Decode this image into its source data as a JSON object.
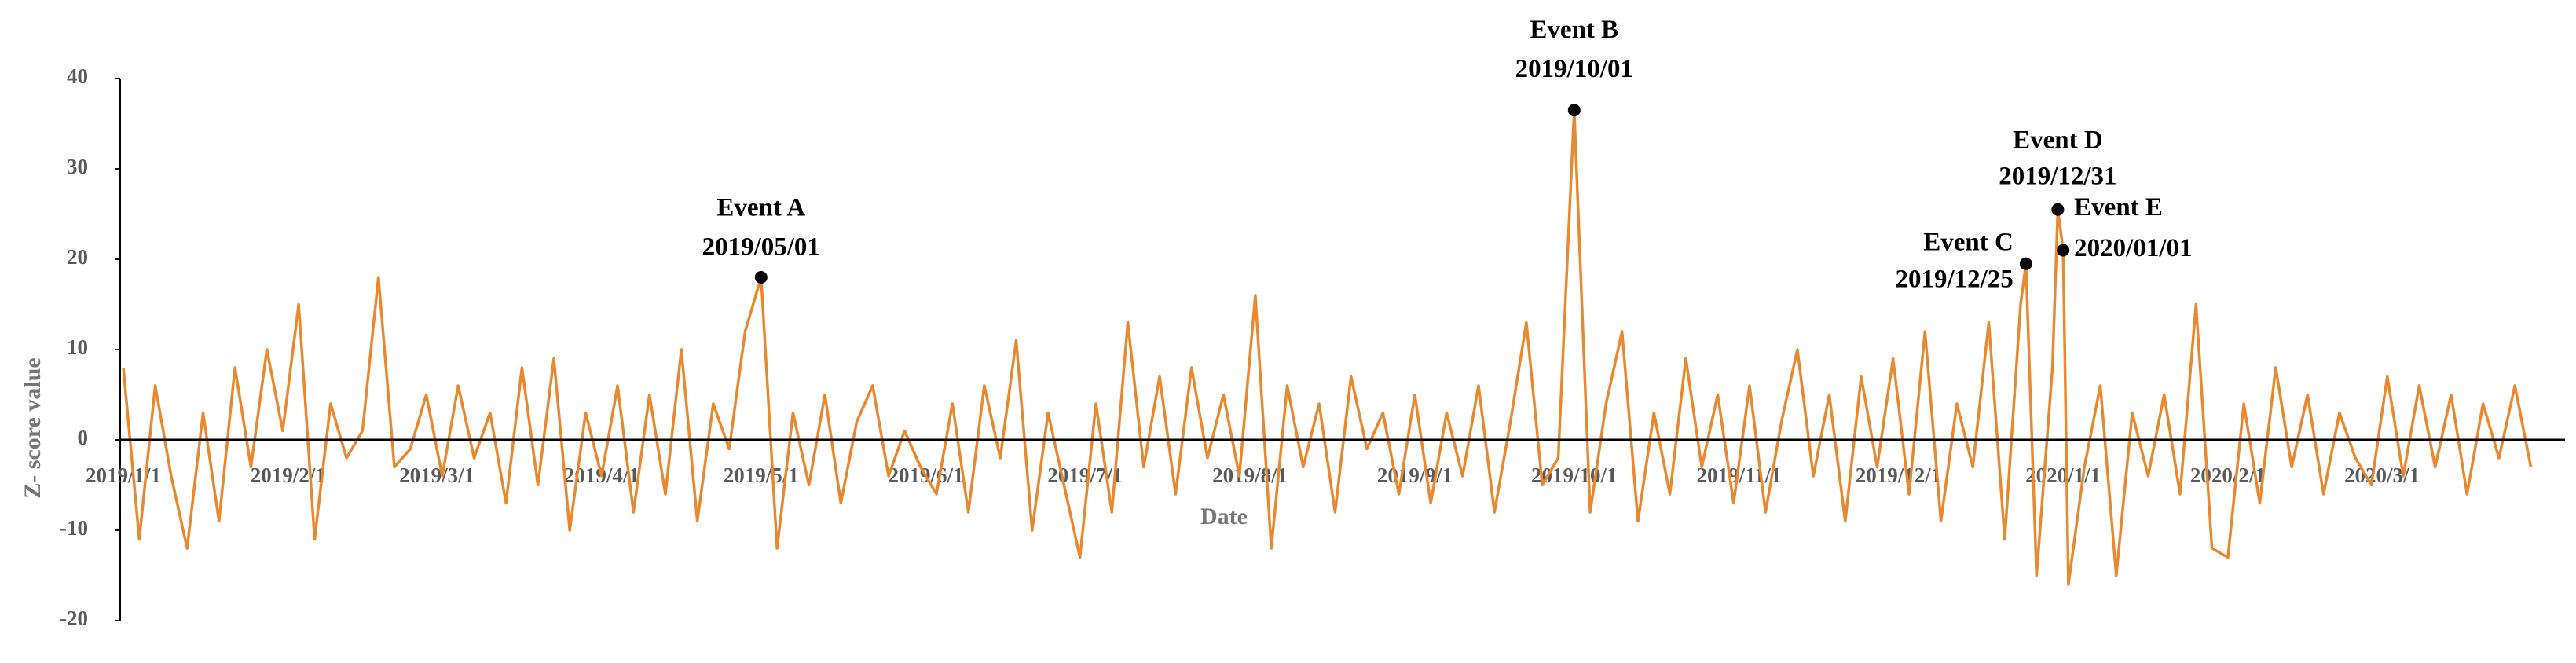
{
  "chart_data": {
    "type": "line",
    "y_label": "Z- score value",
    "x_label": "Date",
    "ylim": [
      -20,
      40
    ],
    "yticks": [
      -20,
      -10,
      0,
      10,
      20,
      30,
      40
    ],
    "xlim": [
      "2019/1/1",
      "2020/3/31"
    ],
    "xticks": [
      "2019/1/1",
      "2019/2/1",
      "2019/3/1",
      "2019/4/1",
      "2019/5/1",
      "2019/6/1",
      "2019/7/1",
      "2019/8/1",
      "2019/9/1",
      "2019/10/1",
      "2019/11/1",
      "2019/12/1",
      "2020/1/1",
      "2020/2/1",
      "2020/3/1"
    ],
    "series": [
      {
        "color": "#e8882f",
        "x": [
          "2019/1/1",
          "2019/1/4",
          "2019/1/7",
          "2019/1/10",
          "2019/1/13",
          "2019/1/16",
          "2019/1/19",
          "2019/1/22",
          "2019/1/25",
          "2019/1/28",
          "2019/1/31",
          "2019/2/3",
          "2019/2/6",
          "2019/2/9",
          "2019/2/12",
          "2019/2/15",
          "2019/2/18",
          "2019/2/21",
          "2019/2/24",
          "2019/2/27",
          "2019/3/2",
          "2019/3/5",
          "2019/3/8",
          "2019/3/11",
          "2019/3/14",
          "2019/3/17",
          "2019/3/20",
          "2019/3/23",
          "2019/3/26",
          "2019/3/29",
          "2019/4/1",
          "2019/4/4",
          "2019/4/7",
          "2019/4/10",
          "2019/4/13",
          "2019/4/16",
          "2019/4/19",
          "2019/4/22",
          "2019/4/25",
          "2019/4/28",
          "2019/5/1",
          "2019/5/4",
          "2019/5/7",
          "2019/5/10",
          "2019/5/13",
          "2019/5/16",
          "2019/5/19",
          "2019/5/22",
          "2019/5/25",
          "2019/5/28",
          "2019/5/31",
          "2019/6/3",
          "2019/6/6",
          "2019/6/9",
          "2019/6/12",
          "2019/6/15",
          "2019/6/18",
          "2019/6/21",
          "2019/6/24",
          "2019/6/27",
          "2019/6/30",
          "2019/7/3",
          "2019/7/6",
          "2019/7/9",
          "2019/7/12",
          "2019/7/15",
          "2019/7/18",
          "2019/7/21",
          "2019/7/24",
          "2019/7/27",
          "2019/7/30",
          "2019/8/2",
          "2019/8/5",
          "2019/8/8",
          "2019/8/11",
          "2019/8/14",
          "2019/8/17",
          "2019/8/20",
          "2019/8/23",
          "2019/8/26",
          "2019/8/29",
          "2019/9/1",
          "2019/9/4",
          "2019/9/7",
          "2019/9/10",
          "2019/9/13",
          "2019/9/16",
          "2019/9/19",
          "2019/9/22",
          "2019/9/25",
          "2019/9/28",
          "2019/10/1",
          "2019/10/4",
          "2019/10/7",
          "2019/10/10",
          "2019/10/13",
          "2019/10/16",
          "2019/10/19",
          "2019/10/22",
          "2019/10/25",
          "2019/10/28",
          "2019/10/31",
          "2019/11/3",
          "2019/11/6",
          "2019/11/9",
          "2019/11/12",
          "2019/11/15",
          "2019/11/18",
          "2019/11/21",
          "2019/11/24",
          "2019/11/27",
          "2019/11/30",
          "2019/12/3",
          "2019/12/6",
          "2019/12/9",
          "2019/12/12",
          "2019/12/15",
          "2019/12/18",
          "2019/12/21",
          "2019/12/24",
          "2019/12/25",
          "2019/12/27",
          "2019/12/30",
          "2019/12/31",
          "2020/1/1",
          "2020/1/2",
          "2020/1/5",
          "2020/1/8",
          "2020/1/11",
          "2020/1/14",
          "2020/1/17",
          "2020/1/20",
          "2020/1/23",
          "2020/1/26",
          "2020/1/29",
          "2020/2/1",
          "2020/2/4",
          "2020/2/7",
          "2020/2/10",
          "2020/2/13",
          "2020/2/16",
          "2020/2/19",
          "2020/2/22",
          "2020/2/25",
          "2020/2/28",
          "2020/3/2",
          "2020/3/5",
          "2020/3/8",
          "2020/3/11",
          "2020/3/14",
          "2020/3/17",
          "2020/3/20",
          "2020/3/23",
          "2020/3/26",
          "2020/3/29"
        ],
        "values": [
          8,
          -11,
          6,
          -4,
          -12,
          3,
          -9,
          8,
          -3,
          10,
          1,
          15,
          -11,
          4,
          -2,
          1,
          18,
          -3,
          -1,
          5,
          -4,
          6,
          -2,
          3,
          -7,
          8,
          -5,
          9,
          -10,
          3,
          -4,
          6,
          -8,
          5,
          -6,
          10,
          -9,
          4,
          -1,
          12,
          18,
          -12,
          3,
          -5,
          5,
          -7,
          2,
          6,
          -4,
          1,
          -3,
          -6,
          4,
          -8,
          6,
          -2,
          11,
          -10,
          3,
          -5,
          -13,
          4,
          -8,
          13,
          -3,
          7,
          -6,
          8,
          -2,
          5,
          -4,
          16,
          -12,
          6,
          -3,
          4,
          -8,
          7,
          -1,
          3,
          -6,
          5,
          -7,
          3,
          -4,
          6,
          -8,
          2,
          13,
          -5,
          -2,
          36.5,
          -8,
          4,
          12,
          -9,
          3,
          -6,
          9,
          -3,
          5,
          -7,
          6,
          -8,
          2,
          10,
          -4,
          5,
          -9,
          7,
          -3,
          9,
          -6,
          12,
          -9,
          4,
          -3,
          13,
          -11,
          15,
          19.5,
          -15,
          8,
          25.5,
          21,
          -16,
          -3,
          6,
          -15,
          3,
          -4,
          5,
          -6,
          15,
          -12,
          -13,
          4,
          -7,
          8,
          -3,
          5,
          -6,
          3,
          -2,
          -5,
          7,
          -4,
          6,
          -3,
          5,
          -6,
          4,
          -2,
          6,
          -3
        ]
      }
    ],
    "annotations": [
      {
        "label": "Event A",
        "date": "2019/05/01",
        "value": 18
      },
      {
        "label": "Event B",
        "date": "2019/10/01",
        "value": 36.5
      },
      {
        "label": "Event C",
        "date": "2019/12/25",
        "value": 19.5
      },
      {
        "label": "Event D",
        "date": "2019/12/31",
        "value": 25.5
      },
      {
        "label": "Event E",
        "date": "2020/01/01",
        "value": 21
      }
    ]
  }
}
